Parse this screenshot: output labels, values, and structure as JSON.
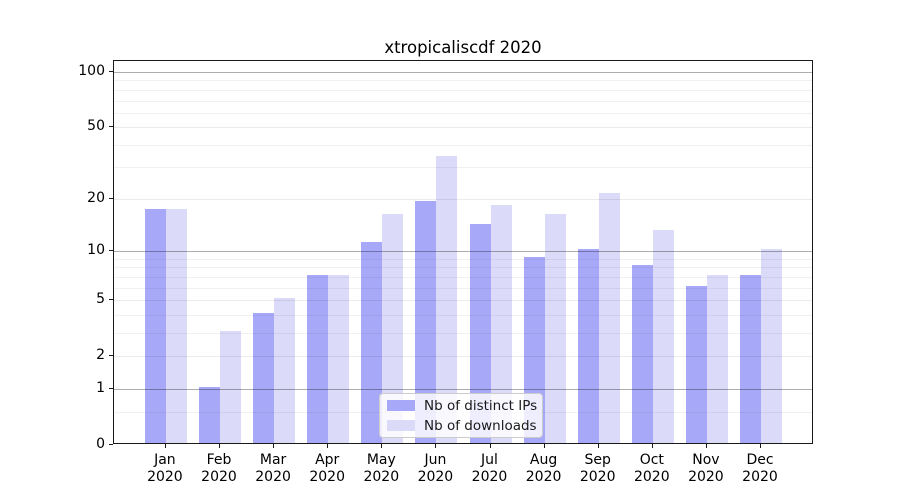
{
  "chart_data": {
    "type": "bar",
    "title": "xtropicaliscdf 2020",
    "categories": [
      "Jan 2020",
      "Feb 2020",
      "Mar 2020",
      "Apr 2020",
      "May 2020",
      "Jun 2020",
      "Jul 2020",
      "Aug 2020",
      "Sep 2020",
      "Oct 2020",
      "Nov 2020",
      "Dec 2020"
    ],
    "series": [
      {
        "name": "Nb of distinct IPs",
        "color": "#a8a8f8",
        "values": [
          17,
          1,
          4,
          7,
          11,
          19,
          14,
          9,
          10,
          8,
          6,
          7
        ]
      },
      {
        "name": "Nb of downloads",
        "color": "#dbdbf9",
        "values": [
          17,
          3,
          5,
          7,
          16,
          34,
          18,
          16,
          21,
          13,
          7,
          10
        ]
      }
    ],
    "yaxis": {
      "scale": "log10(1+y)",
      "ylim": [
        0,
        100
      ],
      "tick_values": [
        0,
        1,
        2,
        5,
        10,
        20,
        50,
        100
      ],
      "tick_labels": [
        "0",
        "1",
        "2",
        "5",
        "10",
        "20",
        "50",
        "100"
      ],
      "major_gridlines": [
        1,
        10,
        100
      ],
      "light_gridlines": [
        2,
        5,
        20,
        50
      ],
      "minor_gridlines": [
        0.5,
        3,
        4,
        6,
        7,
        8,
        9,
        30,
        40,
        60,
        70,
        80,
        90
      ],
      "grid": true
    },
    "legend": {
      "position": "lower center",
      "entries": [
        "Nb of distinct IPs",
        "Nb of downloads"
      ]
    }
  }
}
